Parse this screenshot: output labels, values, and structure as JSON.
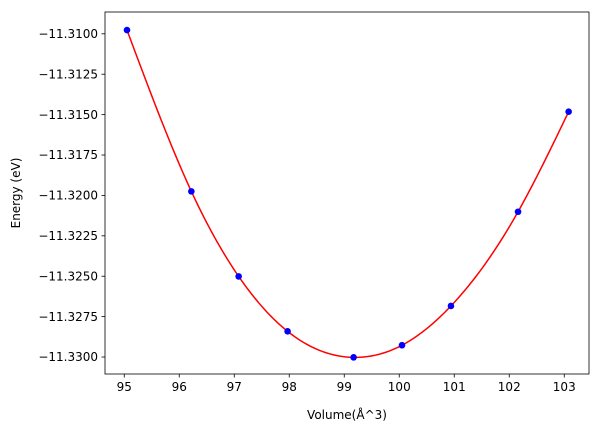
{
  "chart_data": {
    "type": "scatter",
    "title": "",
    "xlabel": "Volume(Å^3)",
    "ylabel": "Energy (eV)",
    "xlim": [
      94.65,
      103.45
    ],
    "ylim": [
      -11.33105,
      -11.30865
    ],
    "grid": false,
    "legend": "none",
    "xticks": [
      95,
      96,
      97,
      98,
      99,
      100,
      101,
      102,
      103
    ],
    "yticks": [
      -11.31,
      -11.3125,
      -11.315,
      -11.3175,
      -11.32,
      -11.3225,
      -11.325,
      -11.3275,
      -11.33
    ],
    "xtick_labels": [
      "95",
      "96",
      "97",
      "98",
      "99",
      "100",
      "101",
      "102",
      "103"
    ],
    "ytick_labels": [
      "−11.3100",
      "−11.3125",
      "−11.3150",
      "−11.3175",
      "−11.3200",
      "−11.3225",
      "−11.3250",
      "−11.3275",
      "−11.3300"
    ],
    "series": [
      {
        "kind": "points",
        "color": "#0000ff",
        "x": [
          95.05,
          96.22,
          97.08,
          97.97,
          99.17,
          100.05,
          100.94,
          102.16,
          103.08
        ],
        "y": [
          -11.30977,
          -11.31975,
          -11.32501,
          -11.32841,
          -11.33002,
          -11.32927,
          -11.32684,
          -11.32101,
          -11.31482
        ]
      },
      {
        "kind": "fit-curve",
        "color": "#ff0000",
        "x": [
          95.05,
          96.22,
          97.08,
          97.97,
          99.17,
          100.05,
          100.94,
          102.16,
          103.08
        ],
        "y": [
          -11.30977,
          -11.31975,
          -11.32501,
          -11.32841,
          -11.33002,
          -11.32927,
          -11.32684,
          -11.32101,
          -11.31482
        ]
      }
    ]
  }
}
